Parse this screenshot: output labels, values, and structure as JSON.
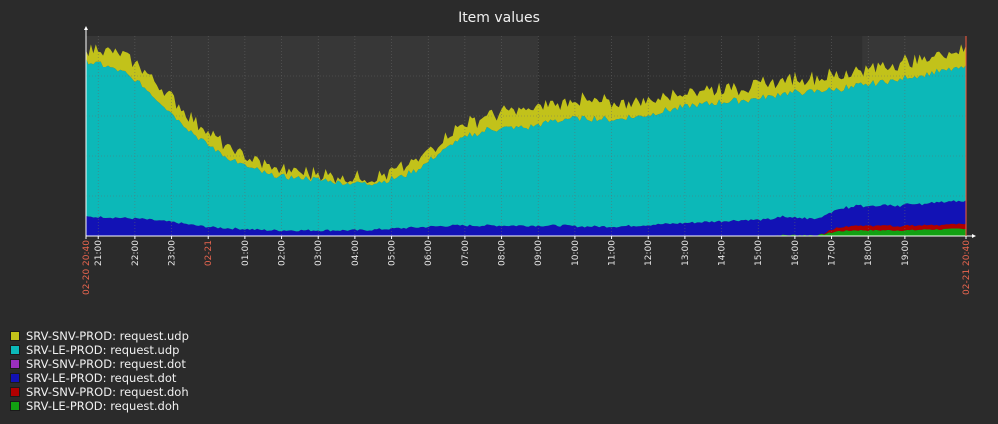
{
  "chart_data": {
    "type": "area",
    "title": "Item values",
    "x_range": [
      "02-20 20:40",
      "02-21 20:40"
    ],
    "y_range": [
      0,
      210
    ],
    "grid": true,
    "legend_placement": "bottom-left",
    "x_tick_labels": [
      {
        "label": "02-20 20:40",
        "t": 0,
        "highlight": true
      },
      {
        "label": "21:00",
        "t": 20,
        "highlight": false
      },
      {
        "label": "22:00",
        "t": 80,
        "highlight": false
      },
      {
        "label": "23:00",
        "t": 140,
        "highlight": false
      },
      {
        "label": "02-21",
        "t": 200,
        "highlight": true
      },
      {
        "label": "01:00",
        "t": 260,
        "highlight": false
      },
      {
        "label": "02:00",
        "t": 320,
        "highlight": false
      },
      {
        "label": "03:00",
        "t": 380,
        "highlight": false
      },
      {
        "label": "04:00",
        "t": 440,
        "highlight": false
      },
      {
        "label": "05:00",
        "t": 500,
        "highlight": false
      },
      {
        "label": "06:00",
        "t": 560,
        "highlight": false
      },
      {
        "label": "07:00",
        "t": 620,
        "highlight": false
      },
      {
        "label": "08:00",
        "t": 680,
        "highlight": false
      },
      {
        "label": "09:00",
        "t": 740,
        "highlight": false
      },
      {
        "label": "10:00",
        "t": 800,
        "highlight": false
      },
      {
        "label": "11:00",
        "t": 860,
        "highlight": false
      },
      {
        "label": "12:00",
        "t": 920,
        "highlight": false
      },
      {
        "label": "13:00",
        "t": 980,
        "highlight": false
      },
      {
        "label": "14:00",
        "t": 1040,
        "highlight": false
      },
      {
        "label": "15:00",
        "t": 1100,
        "highlight": false
      },
      {
        "label": "16:00",
        "t": 1160,
        "highlight": false
      },
      {
        "label": "17:00",
        "t": 1220,
        "highlight": false
      },
      {
        "label": "18:00",
        "t": 1280,
        "highlight": false
      },
      {
        "label": "19:00",
        "t": 1340,
        "highlight": false
      },
      {
        "label": "02-21 20:40",
        "t": 1440,
        "highlight": true
      }
    ],
    "x_minutes": [
      0,
      30,
      60,
      90,
      120,
      150,
      180,
      210,
      240,
      270,
      300,
      330,
      360,
      390,
      420,
      450,
      480,
      510,
      540,
      570,
      600,
      630,
      660,
      690,
      720,
      750,
      780,
      810,
      840,
      870,
      900,
      930,
      960,
      990,
      1020,
      1050,
      1080,
      1110,
      1140,
      1170,
      1200,
      1230,
      1260,
      1290,
      1320,
      1350,
      1380,
      1410,
      1440
    ],
    "series": [
      {
        "name": "SRV-SNV-PROD: request.udp",
        "color": "#c2c21a",
        "values": [
          14,
          16,
          17,
          18,
          18,
          17,
          15,
          13,
          11,
          9,
          8,
          7,
          6,
          6,
          6,
          6,
          7,
          8,
          10,
          11,
          13,
          14,
          16,
          17,
          18,
          18,
          18,
          19,
          18,
          17,
          16,
          16,
          16,
          15,
          15,
          15,
          14,
          14,
          14,
          14,
          14,
          15,
          15,
          16,
          17,
          17,
          17,
          18,
          18
        ]
      },
      {
        "name": "SRV-LE-PROD: request.udp",
        "color": "#0cb8b8",
        "values": [
          163,
          160,
          153,
          141,
          125,
          109,
          94,
          82,
          72,
          64,
          58,
          56,
          55,
          53,
          50,
          49,
          50,
          53,
          60,
          73,
          86,
          95,
          101,
          103,
          103,
          108,
          111,
          114,
          113,
          113,
          115,
          117,
          120,
          123,
          124,
          126,
          126,
          128,
          130,
          132,
          134,
          126,
          125,
          129,
          131,
          134,
          136,
          138,
          140
        ]
      },
      {
        "name": "SRV-SNV-PROD: request.dot",
        "color": "#9b2fbf",
        "values": [
          0,
          0,
          0,
          0,
          0,
          0,
          0,
          0,
          0,
          0,
          0,
          0,
          0,
          0,
          0,
          0,
          0,
          0,
          0,
          0,
          0,
          0,
          0,
          0,
          0,
          0,
          0,
          0,
          0,
          0,
          0,
          0,
          0,
          0,
          0,
          0,
          0,
          0,
          0,
          0,
          0,
          0,
          0,
          0,
          0,
          0,
          0,
          0,
          0
        ]
      },
      {
        "name": "SRV-LE-PROD: request.dot",
        "color": "#1212b5",
        "values": [
          20,
          20,
          19,
          18,
          16,
          14,
          11,
          9,
          8,
          7,
          6,
          6,
          6,
          6,
          6,
          6,
          7,
          8,
          9,
          10,
          11,
          11,
          11,
          11,
          11,
          11,
          11,
          10,
          10,
          10,
          11,
          12,
          13,
          14,
          15,
          16,
          17,
          17,
          19,
          18,
          18,
          19,
          21,
          21,
          22,
          22,
          23,
          24,
          24
        ]
      },
      {
        "name": "SRV-SNV-PROD: request.doh",
        "color": "#b00000",
        "values": [
          0,
          0,
          0,
          0,
          0,
          0,
          0,
          0,
          0,
          0,
          0,
          0,
          0,
          0,
          0,
          0,
          0,
          0,
          0,
          0,
          0,
          0,
          0,
          0,
          0,
          0,
          0,
          0,
          0,
          0,
          0,
          0,
          0,
          0,
          0,
          0,
          0,
          0,
          0,
          0,
          0,
          4,
          5,
          5,
          5,
          5,
          5,
          5,
          5
        ]
      },
      {
        "name": "SRV-LE-PROD: request.doh",
        "color": "#12a012",
        "values": [
          0,
          0,
          0,
          0,
          0,
          0,
          0,
          0,
          0,
          0,
          0,
          0,
          0,
          0,
          0,
          0,
          0,
          0,
          0,
          0,
          0,
          0,
          0,
          0,
          0,
          0,
          0,
          0,
          0,
          0,
          0,
          0,
          0,
          0,
          0,
          0,
          0,
          0,
          1,
          1,
          1,
          5,
          6,
          6,
          6,
          6,
          7,
          7,
          8
        ]
      }
    ]
  }
}
